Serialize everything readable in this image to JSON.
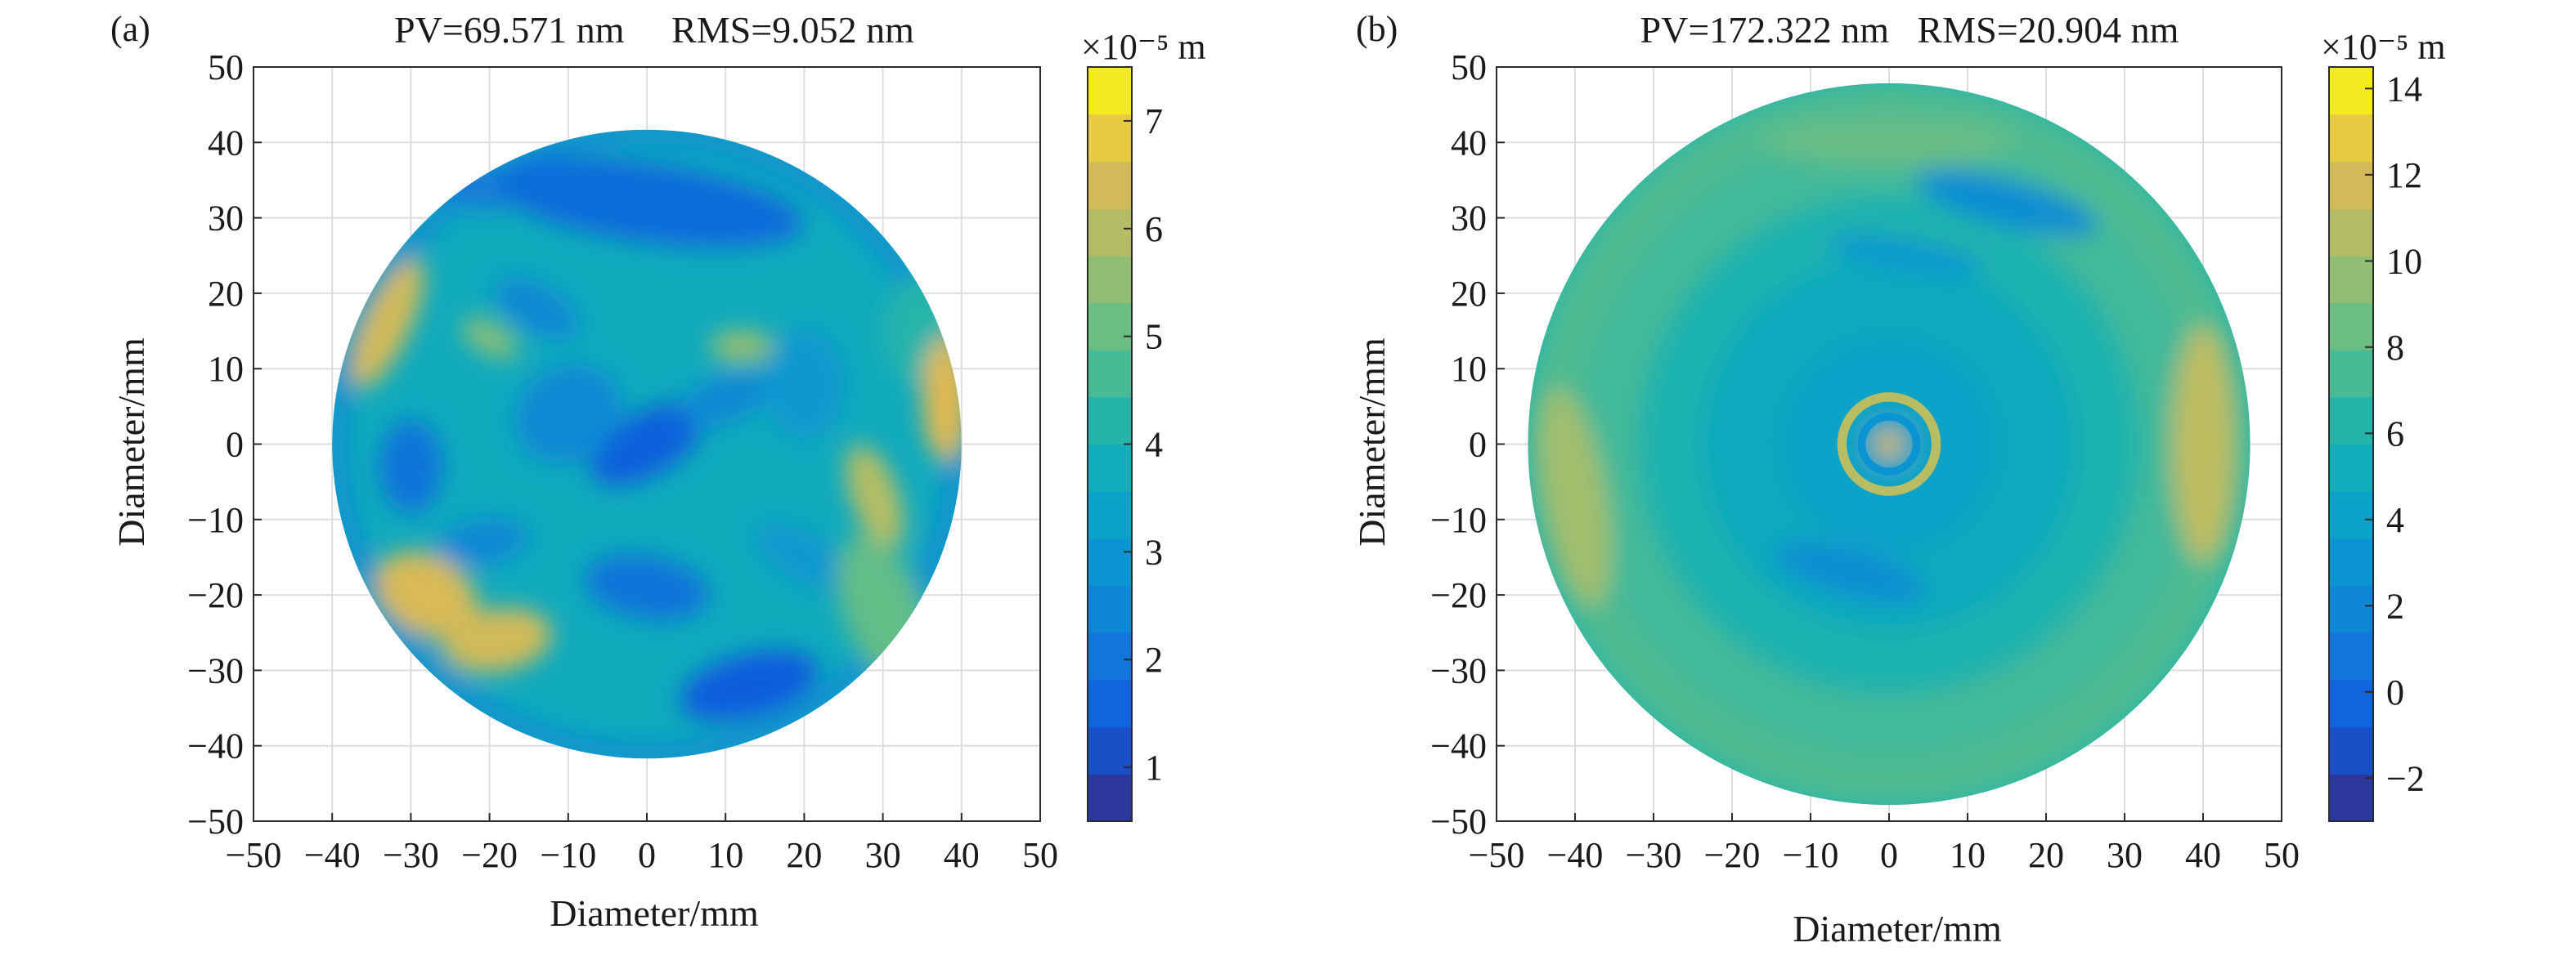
{
  "chart_data": [
    {
      "type": "heatmap",
      "panel_label": "(a)",
      "title": "PV=69.571 nm     RMS=9.052 nm",
      "xlabel": "Diameter/mm",
      "ylabel": "Diameter/mm",
      "xlim": [
        -50,
        50
      ],
      "ylim": [
        -50,
        50
      ],
      "x_ticks": [
        "−50",
        "−40",
        "−30",
        "−20",
        "−10",
        "0",
        "10",
        "20",
        "30",
        "40",
        "50"
      ],
      "y_ticks": [
        "50",
        "40",
        "30",
        "20",
        "10",
        "0",
        "−10",
        "−20",
        "−30",
        "−40",
        "−50"
      ],
      "grid": true,
      "aperture_radius_mm": 40,
      "colorbar": {
        "unit": "×10⁻⁵ m",
        "range": [
          0.5,
          7.5
        ],
        "ticks": [
          1,
          2,
          3,
          4,
          5,
          6,
          7
        ],
        "tick_labels": [
          "1",
          "2",
          "3",
          "4",
          "5",
          "6",
          "7"
        ],
        "colormap": "parula"
      },
      "features": [
        {
          "x": 0,
          "y": 0,
          "rx": 8,
          "ry": 4,
          "rot": 30,
          "value": 1.5
        },
        {
          "x": -10,
          "y": 4,
          "rx": 7,
          "ry": 6,
          "rot": 30,
          "value": 2.6
        },
        {
          "x": 0,
          "y": 32,
          "rx": 20,
          "ry": 5,
          "rot": -8,
          "value": 1.8
        },
        {
          "x": -14,
          "y": 18,
          "rx": 6,
          "ry": 3,
          "rot": -30,
          "value": 2.6
        },
        {
          "x": -30,
          "y": -3,
          "rx": 4,
          "ry": 6,
          "rot": 0,
          "value": 2.0
        },
        {
          "x": -21,
          "y": -13,
          "rx": 6,
          "ry": 3,
          "rot": 10,
          "value": 2.6
        },
        {
          "x": 0,
          "y": -19,
          "rx": 8,
          "ry": 4,
          "rot": -10,
          "value": 2.0
        },
        {
          "x": 13,
          "y": -32,
          "rx": 9,
          "ry": 4,
          "rot": 15,
          "value": 1.4
        },
        {
          "x": 10,
          "y": 6,
          "rx": 6,
          "ry": 3,
          "rot": 20,
          "value": 2.6
        },
        {
          "x": 20,
          "y": -15,
          "rx": 7,
          "ry": 3,
          "rot": -30,
          "value": 3.0
        },
        {
          "x": 20,
          "y": 8,
          "rx": 5,
          "ry": 7,
          "rot": 0,
          "value": 3.0
        },
        {
          "x": 35,
          "y": 15,
          "rx": 5,
          "ry": 7,
          "rot": 0,
          "value": 4.2
        },
        {
          "x": -33,
          "y": 16,
          "rx": 3,
          "ry": 9,
          "rot": -25,
          "value": 6.4
        },
        {
          "x": -28,
          "y": -20,
          "rx": 7,
          "ry": 5,
          "rot": -30,
          "value": 6.5
        },
        {
          "x": -19,
          "y": -26,
          "rx": 7,
          "ry": 4,
          "rot": 10,
          "value": 6.4
        },
        {
          "x": 29,
          "y": -7,
          "rx": 3,
          "ry": 7,
          "rot": 20,
          "value": 6.0
        },
        {
          "x": 12,
          "y": 13,
          "rx": 4,
          "ry": 2,
          "rot": 0,
          "value": 5.6
        },
        {
          "x": -20,
          "y": 14,
          "rx": 4,
          "ry": 2,
          "rot": -30,
          "value": 5.4
        },
        {
          "x": 38,
          "y": 6,
          "rx": 3,
          "ry": 8,
          "rot": 0,
          "value": 6.6
        },
        {
          "x": 30,
          "y": -22,
          "rx": 5,
          "ry": 10,
          "rot": 20,
          "value": 5.0
        },
        {
          "x": -25,
          "y": 36,
          "rx": 8,
          "ry": 3,
          "rot": -30,
          "value": 2.2
        }
      ]
    },
    {
      "type": "heatmap",
      "panel_label": "(b)",
      "title": "PV=172.322 nm   RMS=20.904 nm",
      "xlabel": "Diameter/mm",
      "ylabel": "Diameter/mm",
      "xlim": [
        -50,
        50
      ],
      "ylim": [
        -50,
        50
      ],
      "x_ticks": [
        "−50",
        "−40",
        "−30",
        "−20",
        "−10",
        "0",
        "10",
        "20",
        "30",
        "40",
        "50"
      ],
      "y_ticks": [
        "50",
        "40",
        "30",
        "20",
        "10",
        "0",
        "−10",
        "−20",
        "−30",
        "−40",
        "−50"
      ],
      "grid": true,
      "aperture_radius_mm": 46,
      "colorbar": {
        "unit": "×10⁻⁵ m",
        "range": [
          -3,
          14.5
        ],
        "ticks": [
          -2,
          0,
          2,
          4,
          6,
          8,
          10,
          12,
          14
        ],
        "tick_labels": [
          "−2",
          "0",
          "2",
          "4",
          "6",
          "8",
          "10",
          "12",
          "14"
        ],
        "colormap": "parula"
      },
      "rings": [
        {
          "r": 46,
          "value": 7.6
        },
        {
          "r": 40,
          "value": 7.2
        },
        {
          "r": 32,
          "value": 6.0
        },
        {
          "r": 24,
          "value": 5.0
        },
        {
          "r": 14,
          "value": 4.2
        }
      ],
      "features": [
        {
          "x": 40,
          "y": 0,
          "rx": 4,
          "ry": 15,
          "rot": 0,
          "value": 11.0
        },
        {
          "x": -40,
          "y": -7,
          "rx": 4,
          "ry": 14,
          "rot": 10,
          "value": 10.0
        },
        {
          "x": 0,
          "y": 40,
          "rx": 16,
          "ry": 3,
          "rot": 0,
          "value": 8.4
        },
        {
          "x": 15,
          "y": 32,
          "rx": 12,
          "ry": 3,
          "rot": -15,
          "value": 2.5
        },
        {
          "x": 2,
          "y": 25,
          "rx": 10,
          "ry": 2,
          "rot": -10,
          "value": 3.2
        },
        {
          "x": -5,
          "y": -17,
          "rx": 10,
          "ry": 3,
          "rot": -15,
          "value": 2.6
        },
        {
          "x": 0,
          "y": 0,
          "r_ring": 6,
          "ring_width": 1.2,
          "value": 10.8
        },
        {
          "x": 0,
          "y": 0,
          "r_ring": 3.5,
          "ring_width": 1.0,
          "value": 3.0
        },
        {
          "x": 0,
          "y": 0,
          "rx": 1.8,
          "ry": 1.8,
          "rot": 0,
          "value": 12.0
        }
      ]
    }
  ]
}
